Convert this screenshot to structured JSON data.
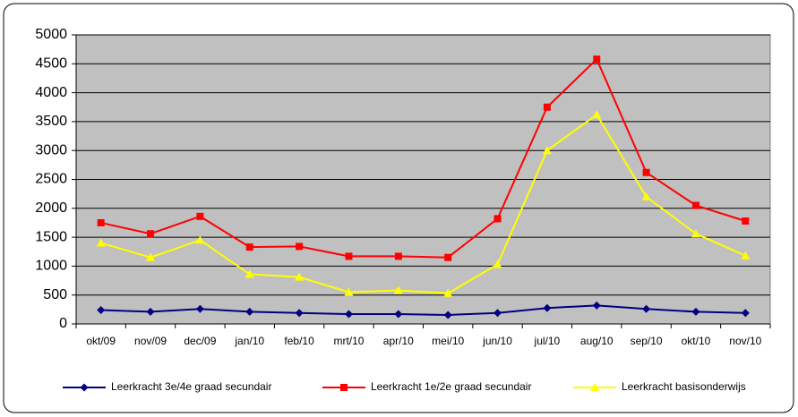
{
  "chart_data": {
    "type": "line",
    "categories": [
      "okt/09",
      "nov/09",
      "dec/09",
      "jan/10",
      "feb/10",
      "mrt/10",
      "apr/10",
      "mei/10",
      "jun/10",
      "jul/10",
      "aug/10",
      "sep/10",
      "okt/10",
      "nov/10"
    ],
    "series": [
      {
        "name": "Leerkracht 3e/4e graad secundair",
        "color": "#000080",
        "marker": "diamond",
        "values": [
          240,
          210,
          260,
          210,
          190,
          170,
          170,
          155,
          190,
          275,
          320,
          260,
          210,
          190
        ]
      },
      {
        "name": "Leerkracht 1e/2e graad secundair",
        "color": "#ff0000",
        "marker": "square",
        "values": [
          1750,
          1560,
          1860,
          1330,
          1340,
          1170,
          1170,
          1150,
          1820,
          3750,
          4580,
          2620,
          2050,
          1780
        ]
      },
      {
        "name": "Leerkracht basisonderwijs",
        "color": "#ffff00",
        "marker": "triangle",
        "values": [
          1400,
          1150,
          1450,
          860,
          810,
          550,
          580,
          530,
          1030,
          3000,
          3620,
          2200,
          1560,
          1180
        ]
      }
    ],
    "ylim": [
      0,
      5000
    ],
    "yticks": [
      0,
      500,
      1000,
      1500,
      2000,
      2500,
      3000,
      3500,
      4000,
      4500,
      5000
    ],
    "grid": true,
    "legend": "bottom",
    "plot_background": "#c0c0c0"
  }
}
